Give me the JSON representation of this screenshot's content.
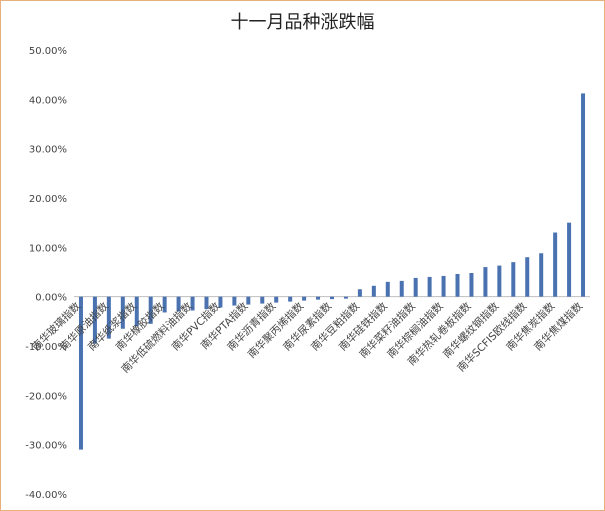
{
  "chart_data": {
    "type": "bar",
    "title": "十一月品种涨跌幅",
    "xlabel": "",
    "ylabel": "",
    "ylim": [
      -40,
      50
    ],
    "y_ticks": [
      "-40.00%",
      "-30.00%",
      "-20.00%",
      "-10.00%",
      "0.00%",
      "10.00%",
      "20.00%",
      "30.00%",
      "40.00%",
      "50.00%"
    ],
    "grid": false,
    "legend": "none",
    "bar_color": "#4a72b0",
    "values": [
      -31.0,
      -9.5,
      -8.5,
      -6.5,
      -6.0,
      -5.5,
      -3.2,
      -3.0,
      -2.8,
      -2.5,
      -2.2,
      -1.8,
      -1.6,
      -1.4,
      -1.2,
      -1.0,
      -0.8,
      -0.6,
      -0.5,
      -0.4,
      1.5,
      2.2,
      3.0,
      3.2,
      3.8,
      4.0,
      4.2,
      4.6,
      4.8,
      6.0,
      6.3,
      7.0,
      8.0,
      8.8,
      13.0,
      15.0,
      41.2
    ],
    "labeled_categories": [
      {
        "index": 0,
        "label": "南华玻璃指数"
      },
      {
        "index": 2,
        "label": "南华原油指数"
      },
      {
        "index": 4,
        "label": "南华纸浆指数"
      },
      {
        "index": 6,
        "label": "南华橡胶指数"
      },
      {
        "index": 8,
        "label": "南华低硫燃料油指数"
      },
      {
        "index": 10,
        "label": "南华PVC指数"
      },
      {
        "index": 12,
        "label": "南华PTA指数"
      },
      {
        "index": 14,
        "label": "南华沥青指数"
      },
      {
        "index": 16,
        "label": "南华聚丙烯指数"
      },
      {
        "index": 18,
        "label": "南华尿素指数"
      },
      {
        "index": 20,
        "label": "南华豆粕指数"
      },
      {
        "index": 22,
        "label": "南华硅铁指数"
      },
      {
        "index": 24,
        "label": "南华菜籽油指数"
      },
      {
        "index": 26,
        "label": "南华棕榈油指数"
      },
      {
        "index": 28,
        "label": "南华热轧卷板指数"
      },
      {
        "index": 30,
        "label": "南华螺纹钢指数"
      },
      {
        "index": 32,
        "label": "南华SCFIS欧线指数"
      },
      {
        "index": 34,
        "label": "南华焦炭指数"
      },
      {
        "index": 36,
        "label": "南华焦煤指数"
      }
    ]
  }
}
